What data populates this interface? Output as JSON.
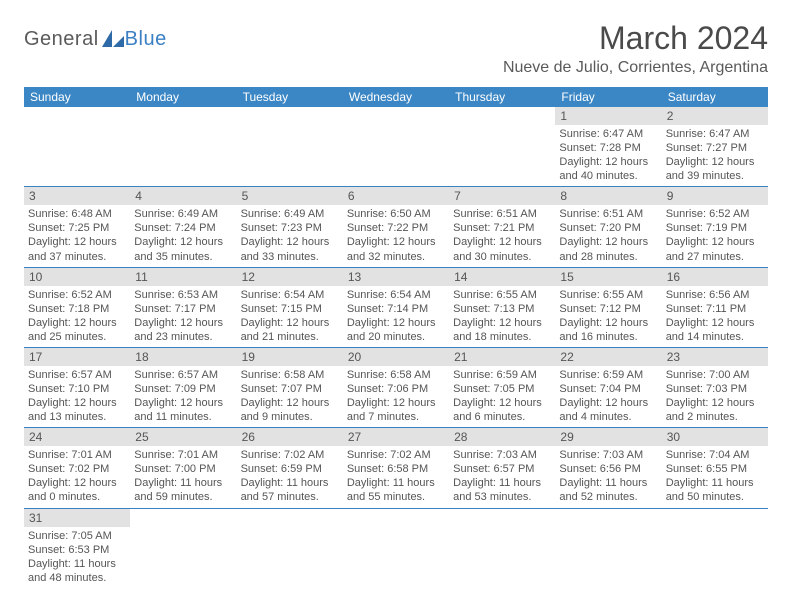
{
  "brand": {
    "part1": "General",
    "part2": "Blue"
  },
  "title": "March 2024",
  "location": "Nueve de Julio, Corrientes, Argentina",
  "colors": {
    "header_bg": "#3b86c4",
    "header_text": "#ffffff",
    "daynum_bg": "#e2e2e2",
    "text": "#555555",
    "border": "#3b7fc4",
    "brand_gray": "#5a5a5a",
    "brand_blue": "#3b7fc4",
    "title_color": "#4a4a4a",
    "background": "#ffffff"
  },
  "dayHeaders": [
    "Sunday",
    "Monday",
    "Tuesday",
    "Wednesday",
    "Thursday",
    "Friday",
    "Saturday"
  ],
  "weeks": [
    [
      null,
      null,
      null,
      null,
      null,
      {
        "day": "1",
        "sunrise": "Sunrise: 6:47 AM",
        "sunset": "Sunset: 7:28 PM",
        "daylight": "Daylight: 12 hours and 40 minutes."
      },
      {
        "day": "2",
        "sunrise": "Sunrise: 6:47 AM",
        "sunset": "Sunset: 7:27 PM",
        "daylight": "Daylight: 12 hours and 39 minutes."
      }
    ],
    [
      {
        "day": "3",
        "sunrise": "Sunrise: 6:48 AM",
        "sunset": "Sunset: 7:25 PM",
        "daylight": "Daylight: 12 hours and 37 minutes."
      },
      {
        "day": "4",
        "sunrise": "Sunrise: 6:49 AM",
        "sunset": "Sunset: 7:24 PM",
        "daylight": "Daylight: 12 hours and 35 minutes."
      },
      {
        "day": "5",
        "sunrise": "Sunrise: 6:49 AM",
        "sunset": "Sunset: 7:23 PM",
        "daylight": "Daylight: 12 hours and 33 minutes."
      },
      {
        "day": "6",
        "sunrise": "Sunrise: 6:50 AM",
        "sunset": "Sunset: 7:22 PM",
        "daylight": "Daylight: 12 hours and 32 minutes."
      },
      {
        "day": "7",
        "sunrise": "Sunrise: 6:51 AM",
        "sunset": "Sunset: 7:21 PM",
        "daylight": "Daylight: 12 hours and 30 minutes."
      },
      {
        "day": "8",
        "sunrise": "Sunrise: 6:51 AM",
        "sunset": "Sunset: 7:20 PM",
        "daylight": "Daylight: 12 hours and 28 minutes."
      },
      {
        "day": "9",
        "sunrise": "Sunrise: 6:52 AM",
        "sunset": "Sunset: 7:19 PM",
        "daylight": "Daylight: 12 hours and 27 minutes."
      }
    ],
    [
      {
        "day": "10",
        "sunrise": "Sunrise: 6:52 AM",
        "sunset": "Sunset: 7:18 PM",
        "daylight": "Daylight: 12 hours and 25 minutes."
      },
      {
        "day": "11",
        "sunrise": "Sunrise: 6:53 AM",
        "sunset": "Sunset: 7:17 PM",
        "daylight": "Daylight: 12 hours and 23 minutes."
      },
      {
        "day": "12",
        "sunrise": "Sunrise: 6:54 AM",
        "sunset": "Sunset: 7:15 PM",
        "daylight": "Daylight: 12 hours and 21 minutes."
      },
      {
        "day": "13",
        "sunrise": "Sunrise: 6:54 AM",
        "sunset": "Sunset: 7:14 PM",
        "daylight": "Daylight: 12 hours and 20 minutes."
      },
      {
        "day": "14",
        "sunrise": "Sunrise: 6:55 AM",
        "sunset": "Sunset: 7:13 PM",
        "daylight": "Daylight: 12 hours and 18 minutes."
      },
      {
        "day": "15",
        "sunrise": "Sunrise: 6:55 AM",
        "sunset": "Sunset: 7:12 PM",
        "daylight": "Daylight: 12 hours and 16 minutes."
      },
      {
        "day": "16",
        "sunrise": "Sunrise: 6:56 AM",
        "sunset": "Sunset: 7:11 PM",
        "daylight": "Daylight: 12 hours and 14 minutes."
      }
    ],
    [
      {
        "day": "17",
        "sunrise": "Sunrise: 6:57 AM",
        "sunset": "Sunset: 7:10 PM",
        "daylight": "Daylight: 12 hours and 13 minutes."
      },
      {
        "day": "18",
        "sunrise": "Sunrise: 6:57 AM",
        "sunset": "Sunset: 7:09 PM",
        "daylight": "Daylight: 12 hours and 11 minutes."
      },
      {
        "day": "19",
        "sunrise": "Sunrise: 6:58 AM",
        "sunset": "Sunset: 7:07 PM",
        "daylight": "Daylight: 12 hours and 9 minutes."
      },
      {
        "day": "20",
        "sunrise": "Sunrise: 6:58 AM",
        "sunset": "Sunset: 7:06 PM",
        "daylight": "Daylight: 12 hours and 7 minutes."
      },
      {
        "day": "21",
        "sunrise": "Sunrise: 6:59 AM",
        "sunset": "Sunset: 7:05 PM",
        "daylight": "Daylight: 12 hours and 6 minutes."
      },
      {
        "day": "22",
        "sunrise": "Sunrise: 6:59 AM",
        "sunset": "Sunset: 7:04 PM",
        "daylight": "Daylight: 12 hours and 4 minutes."
      },
      {
        "day": "23",
        "sunrise": "Sunrise: 7:00 AM",
        "sunset": "Sunset: 7:03 PM",
        "daylight": "Daylight: 12 hours and 2 minutes."
      }
    ],
    [
      {
        "day": "24",
        "sunrise": "Sunrise: 7:01 AM",
        "sunset": "Sunset: 7:02 PM",
        "daylight": "Daylight: 12 hours and 0 minutes."
      },
      {
        "day": "25",
        "sunrise": "Sunrise: 7:01 AM",
        "sunset": "Sunset: 7:00 PM",
        "daylight": "Daylight: 11 hours and 59 minutes."
      },
      {
        "day": "26",
        "sunrise": "Sunrise: 7:02 AM",
        "sunset": "Sunset: 6:59 PM",
        "daylight": "Daylight: 11 hours and 57 minutes."
      },
      {
        "day": "27",
        "sunrise": "Sunrise: 7:02 AM",
        "sunset": "Sunset: 6:58 PM",
        "daylight": "Daylight: 11 hours and 55 minutes."
      },
      {
        "day": "28",
        "sunrise": "Sunrise: 7:03 AM",
        "sunset": "Sunset: 6:57 PM",
        "daylight": "Daylight: 11 hours and 53 minutes."
      },
      {
        "day": "29",
        "sunrise": "Sunrise: 7:03 AM",
        "sunset": "Sunset: 6:56 PM",
        "daylight": "Daylight: 11 hours and 52 minutes."
      },
      {
        "day": "30",
        "sunrise": "Sunrise: 7:04 AM",
        "sunset": "Sunset: 6:55 PM",
        "daylight": "Daylight: 11 hours and 50 minutes."
      }
    ],
    [
      {
        "day": "31",
        "sunrise": "Sunrise: 7:05 AM",
        "sunset": "Sunset: 6:53 PM",
        "daylight": "Daylight: 11 hours and 48 minutes."
      },
      null,
      null,
      null,
      null,
      null,
      null
    ]
  ]
}
